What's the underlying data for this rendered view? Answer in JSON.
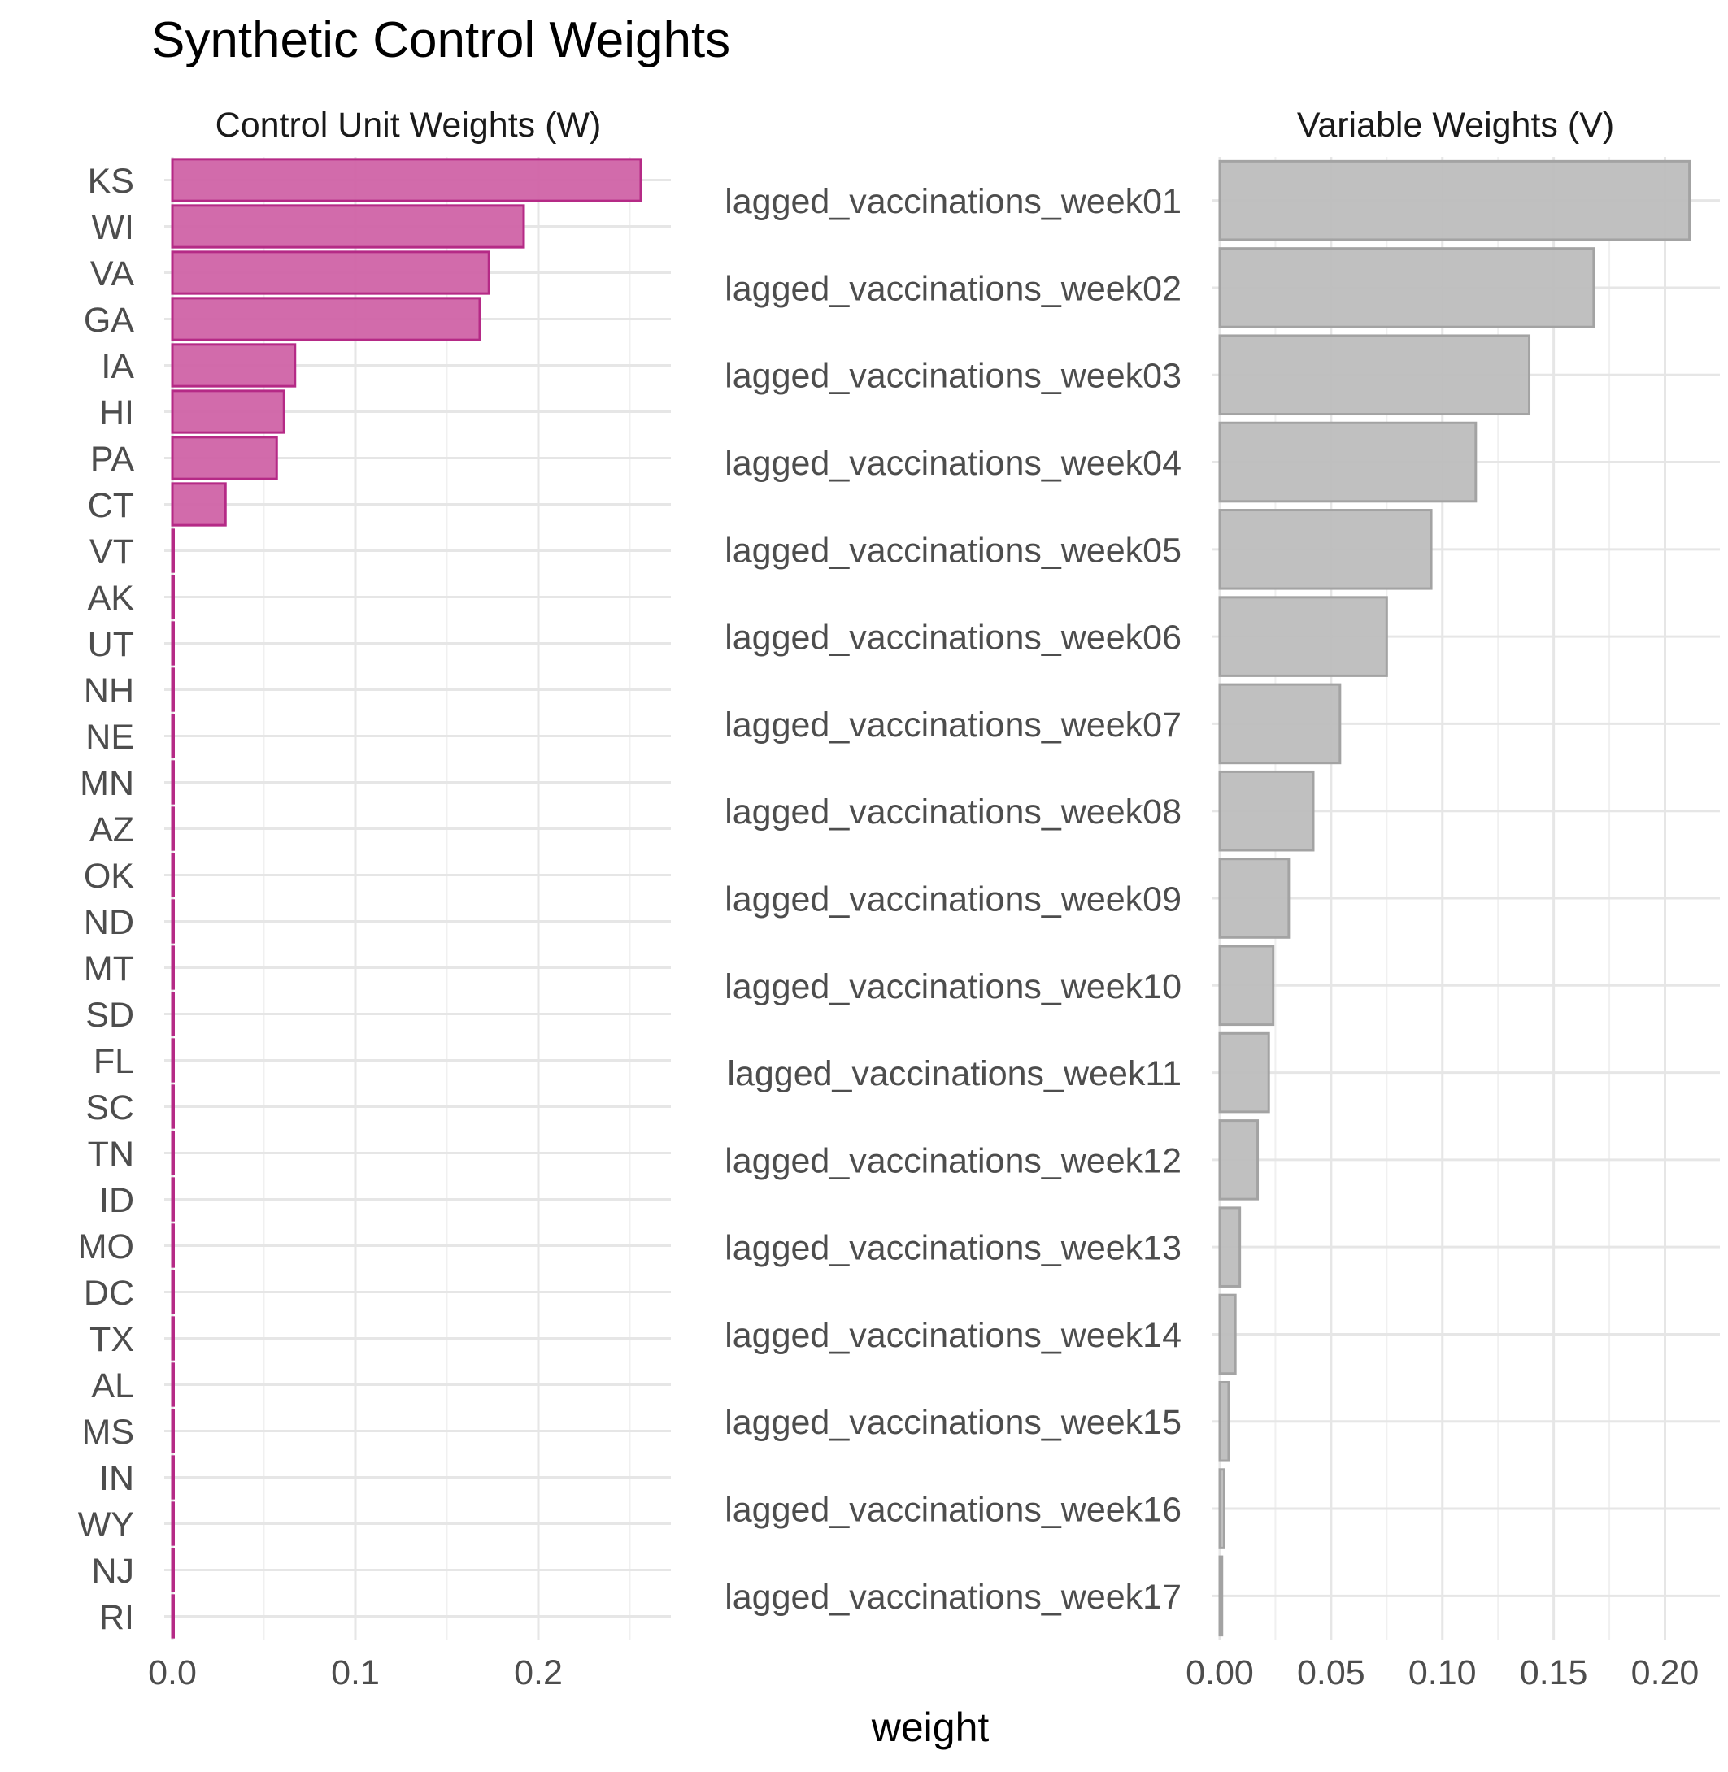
{
  "title": "Synthetic Control Weights",
  "shared_xlabel": "weight",
  "chart_data": [
    {
      "type": "bar",
      "orientation": "horizontal",
      "title": "Control Unit Weights (W)",
      "xlabel": "weight",
      "ylabel": "",
      "categories": [
        "KS",
        "WI",
        "VA",
        "GA",
        "IA",
        "HI",
        "PA",
        "CT",
        "VT",
        "AK",
        "UT",
        "NH",
        "NE",
        "MN",
        "AZ",
        "OK",
        "ND",
        "MT",
        "SD",
        "FL",
        "SC",
        "TN",
        "ID",
        "MO",
        "DC",
        "TX",
        "AL",
        "MS",
        "IN",
        "WY",
        "NJ",
        "RI"
      ],
      "values": [
        0.256,
        0.192,
        0.173,
        0.168,
        0.067,
        0.061,
        0.057,
        0.029,
        0,
        0,
        0,
        0,
        0,
        0,
        0,
        0,
        0,
        0,
        0,
        0,
        0,
        0,
        0,
        0,
        0,
        0,
        0,
        0,
        0,
        0,
        0,
        0
      ],
      "xlim": [
        0,
        0.268
      ],
      "xticks": [
        0.0,
        0.1,
        0.2
      ],
      "xtick_labels": [
        "0.0",
        "0.1",
        "0.2"
      ],
      "bar_fill": "#d063a6",
      "bar_stroke": "#b52a86",
      "grid": true
    },
    {
      "type": "bar",
      "orientation": "horizontal",
      "title": "Variable Weights (V)",
      "xlabel": "weight",
      "ylabel": "",
      "categories": [
        "lagged_vaccinations_week01",
        "lagged_vaccinations_week02",
        "lagged_vaccinations_week03",
        "lagged_vaccinations_week04",
        "lagged_vaccinations_week05",
        "lagged_vaccinations_week06",
        "lagged_vaccinations_week07",
        "lagged_vaccinations_week08",
        "lagged_vaccinations_week09",
        "lagged_vaccinations_week10",
        "lagged_vaccinations_week11",
        "lagged_vaccinations_week12",
        "lagged_vaccinations_week13",
        "lagged_vaccinations_week14",
        "lagged_vaccinations_week15",
        "lagged_vaccinations_week16",
        "lagged_vaccinations_week17"
      ],
      "values": [
        0.211,
        0.168,
        0.139,
        0.115,
        0.095,
        0.075,
        0.054,
        0.042,
        0.031,
        0.024,
        0.022,
        0.017,
        0.009,
        0.007,
        0.004,
        0.002,
        0.001
      ],
      "xlim": [
        0,
        0.221
      ],
      "xticks": [
        0.0,
        0.05,
        0.1,
        0.15,
        0.2
      ],
      "xtick_labels": [
        "0.00",
        "0.05",
        "0.10",
        "0.15",
        "0.20"
      ],
      "bar_fill": "#bdbdbd",
      "bar_stroke": "#a3a3a3",
      "grid": true
    }
  ]
}
